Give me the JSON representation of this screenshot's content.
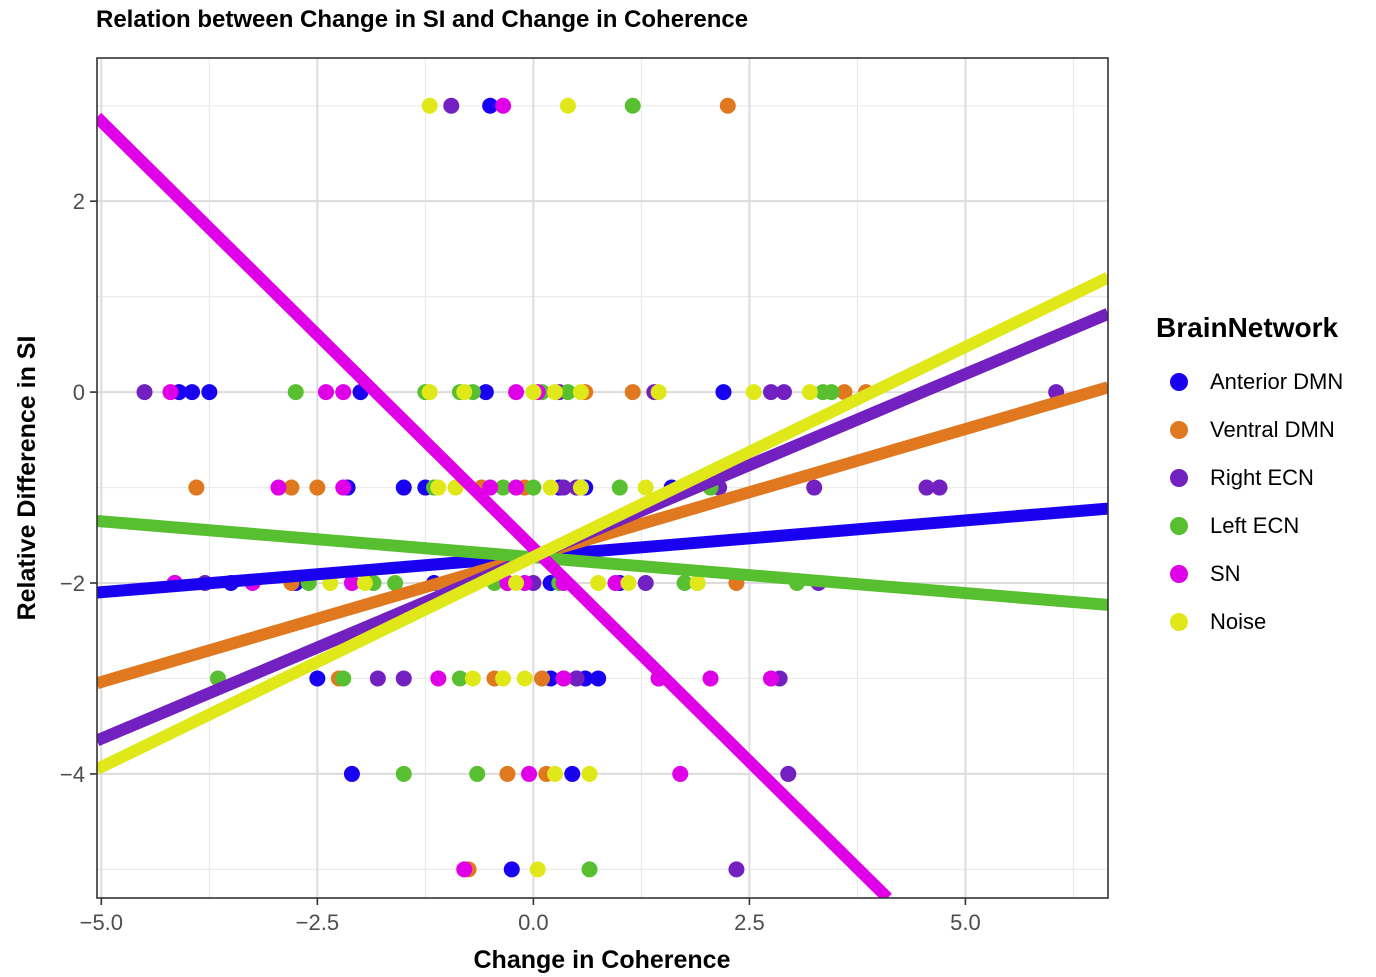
{
  "chart_data": {
    "type": "scatter",
    "title": "Relation between Change in SI and Change in Coherence",
    "xlabel": "Change in Coherence",
    "ylabel": "Relative Difference in SI",
    "xlim": [
      -5.05,
      6.65
    ],
    "ylim": [
      -5.3,
      3.5
    ],
    "x_ticks": [
      -5.0,
      -2.5,
      0.0,
      2.5,
      5.0
    ],
    "x_tick_labels": [
      "−5.0",
      "−2.5",
      "0.0",
      "2.5",
      "5.0"
    ],
    "y_ticks": [
      2,
      0,
      -2,
      -4
    ],
    "y_tick_labels": [
      "2",
      "0",
      "−2",
      "−4"
    ],
    "grid": true,
    "legend_title": "BrainNetwork",
    "legend_position": "right",
    "series": [
      {
        "name": "Anterior DMN",
        "color": "#1a00f0",
        "fit": [
          [
            -5.05,
            -2.1
          ],
          [
            6.65,
            -1.22
          ]
        ],
        "points": [
          [
            -0.5,
            3
          ],
          [
            -4.1,
            0
          ],
          [
            -3.95,
            0
          ],
          [
            -3.75,
            0
          ],
          [
            -2.0,
            0
          ],
          [
            -0.55,
            0
          ],
          [
            2.2,
            0
          ],
          [
            -2.15,
            -1
          ],
          [
            -1.5,
            -1
          ],
          [
            -1.25,
            -1
          ],
          [
            0.3,
            -1
          ],
          [
            0.6,
            -1
          ],
          [
            1.6,
            -1
          ],
          [
            -4.15,
            -2
          ],
          [
            -3.5,
            -2
          ],
          [
            -2.75,
            -2
          ],
          [
            -1.15,
            -2
          ],
          [
            0.2,
            -2
          ],
          [
            1.0,
            -2
          ],
          [
            -2.5,
            -3
          ],
          [
            0.2,
            -3
          ],
          [
            0.5,
            -3
          ],
          [
            0.6,
            -3
          ],
          [
            0.75,
            -3
          ],
          [
            -2.1,
            -4
          ],
          [
            0.45,
            -4
          ],
          [
            -0.25,
            -5
          ]
        ]
      },
      {
        "name": "Ventral DMN",
        "color": "#e07820",
        "fit": [
          [
            -5.05,
            -3.05
          ],
          [
            6.65,
            0.05
          ]
        ],
        "points": [
          [
            2.25,
            3
          ],
          [
            0.6,
            0
          ],
          [
            1.15,
            0
          ],
          [
            3.6,
            0
          ],
          [
            3.85,
            0
          ],
          [
            -3.9,
            -1
          ],
          [
            -2.8,
            -1
          ],
          [
            -2.5,
            -1
          ],
          [
            -0.6,
            -1
          ],
          [
            -0.1,
            -1
          ],
          [
            -2.8,
            -2
          ],
          [
            -0.3,
            -2
          ],
          [
            1.9,
            -2
          ],
          [
            2.35,
            -2
          ],
          [
            -2.25,
            -3
          ],
          [
            -0.45,
            -3
          ],
          [
            0.1,
            -3
          ],
          [
            0.35,
            -3
          ],
          [
            -0.3,
            -4
          ],
          [
            0.15,
            -4
          ],
          [
            -0.75,
            -5
          ]
        ]
      },
      {
        "name": "Right ECN",
        "color": "#7320c0",
        "fit": [
          [
            -5.05,
            -3.65
          ],
          [
            6.65,
            0.82
          ]
        ],
        "points": [
          [
            -0.95,
            3
          ],
          [
            -4.5,
            0
          ],
          [
            0.3,
            0
          ],
          [
            1.4,
            0
          ],
          [
            2.75,
            0
          ],
          [
            2.9,
            0
          ],
          [
            6.05,
            0
          ],
          [
            0.35,
            -1
          ],
          [
            0.5,
            -1
          ],
          [
            2.15,
            -1
          ],
          [
            3.25,
            -1
          ],
          [
            4.55,
            -1
          ],
          [
            4.7,
            -1
          ],
          [
            -3.8,
            -2
          ],
          [
            0.0,
            -2
          ],
          [
            1.3,
            -2
          ],
          [
            3.3,
            -2
          ],
          [
            -1.8,
            -3
          ],
          [
            -1.5,
            -3
          ],
          [
            0.5,
            -3
          ],
          [
            1.45,
            -3
          ],
          [
            2.85,
            -3
          ],
          [
            2.95,
            -4
          ],
          [
            2.35,
            -5
          ]
        ]
      },
      {
        "name": "Left ECN",
        "color": "#58c030",
        "fit": [
          [
            -5.05,
            -1.35
          ],
          [
            6.65,
            -2.23
          ]
        ],
        "points": [
          [
            1.15,
            3
          ],
          [
            -2.75,
            0
          ],
          [
            -1.25,
            0
          ],
          [
            -0.85,
            0
          ],
          [
            -0.7,
            0
          ],
          [
            0.1,
            0
          ],
          [
            0.4,
            0
          ],
          [
            3.35,
            0
          ],
          [
            3.45,
            0
          ],
          [
            -1.15,
            -1
          ],
          [
            -0.35,
            -1
          ],
          [
            0.0,
            -1
          ],
          [
            1.0,
            -1
          ],
          [
            2.05,
            -1
          ],
          [
            -2.6,
            -2
          ],
          [
            -1.85,
            -2
          ],
          [
            -1.6,
            -2
          ],
          [
            -0.45,
            -2
          ],
          [
            0.3,
            -2
          ],
          [
            1.75,
            -2
          ],
          [
            3.05,
            -2
          ],
          [
            -3.65,
            -3
          ],
          [
            -2.2,
            -3
          ],
          [
            -0.85,
            -3
          ],
          [
            -1.5,
            -4
          ],
          [
            -0.65,
            -4
          ],
          [
            0.65,
            -5
          ]
        ]
      },
      {
        "name": "SN",
        "color": "#e000e8",
        "fit": [
          [
            -5.05,
            2.88
          ],
          [
            4.1,
            -5.3
          ]
        ],
        "points": [
          [
            -0.35,
            3
          ],
          [
            -4.2,
            0
          ],
          [
            -2.4,
            0
          ],
          [
            -2.2,
            0
          ],
          [
            -0.2,
            0
          ],
          [
            0.05,
            0
          ],
          [
            -2.95,
            -1
          ],
          [
            -2.2,
            -1
          ],
          [
            -0.5,
            -1
          ],
          [
            -0.2,
            -1
          ],
          [
            -4.15,
            -2
          ],
          [
            -3.25,
            -2
          ],
          [
            -2.1,
            -2
          ],
          [
            -0.3,
            -2
          ],
          [
            -0.1,
            -2
          ],
          [
            0.35,
            -2
          ],
          [
            0.95,
            -2
          ],
          [
            -1.1,
            -3
          ],
          [
            0.35,
            -3
          ],
          [
            1.45,
            -3
          ],
          [
            2.05,
            -3
          ],
          [
            2.75,
            -3
          ],
          [
            -0.05,
            -4
          ],
          [
            1.7,
            -4
          ],
          [
            -0.8,
            -5
          ]
        ]
      },
      {
        "name": "Noise",
        "color": "#e0e81a",
        "fit": [
          [
            -5.05,
            -3.95
          ],
          [
            6.65,
            1.2
          ]
        ],
        "points": [
          [
            -1.2,
            3
          ],
          [
            0.4,
            3
          ],
          [
            -1.2,
            0
          ],
          [
            -0.8,
            0
          ],
          [
            0.0,
            0
          ],
          [
            0.25,
            0
          ],
          [
            0.55,
            0
          ],
          [
            1.45,
            0
          ],
          [
            2.55,
            0
          ],
          [
            3.2,
            0
          ],
          [
            -1.1,
            -1
          ],
          [
            -0.9,
            -1
          ],
          [
            0.2,
            -1
          ],
          [
            0.55,
            -1
          ],
          [
            1.3,
            -1
          ],
          [
            -2.35,
            -2
          ],
          [
            -1.95,
            -2
          ],
          [
            -0.2,
            -2
          ],
          [
            0.75,
            -2
          ],
          [
            1.1,
            -2
          ],
          [
            1.9,
            -2
          ],
          [
            -0.7,
            -3
          ],
          [
            -0.35,
            -3
          ],
          [
            -0.1,
            -3
          ],
          [
            0.25,
            -4
          ],
          [
            0.65,
            -4
          ],
          [
            0.05,
            -5
          ]
        ]
      }
    ]
  }
}
